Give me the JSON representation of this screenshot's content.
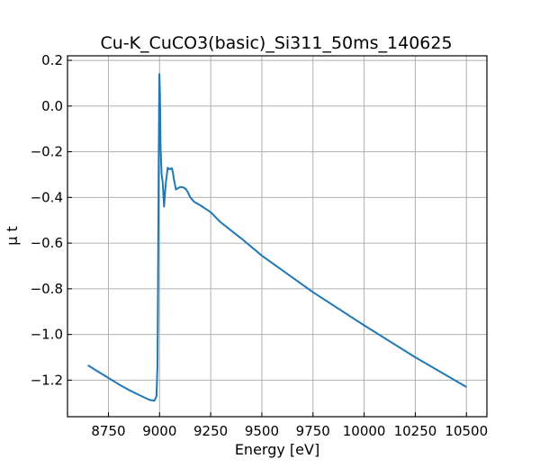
{
  "chart_data": {
    "type": "line",
    "title": "Cu-K_CuCO3(basic)_Si311_50ms_140625",
    "xlabel": "Energy [eV]",
    "ylabel": "μ t",
    "xlim": [
      8550,
      10600
    ],
    "ylim": [
      -1.36,
      0.22
    ],
    "xticks": [
      8750,
      9000,
      9250,
      9500,
      9750,
      10000,
      10250,
      10500
    ],
    "yticks": [
      0.2,
      0.0,
      -0.2,
      -0.4,
      -0.6,
      -0.8,
      -1.0,
      -1.2
    ],
    "xtick_labels": [
      "8750",
      "9000",
      "9250",
      "9500",
      "9750",
      "10000",
      "10250",
      "10500"
    ],
    "ytick_labels": [
      "0.2",
      "0.0",
      "−0.2",
      "−0.4",
      "−0.6",
      "−0.8",
      "−1.0",
      "−1.2"
    ],
    "grid": true,
    "line_color": "#1f77b4",
    "series": [
      {
        "x": [
          8650,
          8700,
          8750,
          8800,
          8850,
          8900,
          8950,
          8975,
          8985,
          8990,
          8993,
          8996,
          8999,
          9002,
          9005,
          9010,
          9015,
          9022,
          9030,
          9040,
          9050,
          9060,
          9065,
          9070,
          9080,
          9090,
          9100,
          9110,
          9120,
          9130,
          9140,
          9150,
          9170,
          9200,
          9250,
          9300,
          9400,
          9500,
          9750,
          10000,
          10250,
          10500
        ],
        "values": [
          -1.135,
          -1.163,
          -1.19,
          -1.218,
          -1.243,
          -1.265,
          -1.286,
          -1.29,
          -1.27,
          -1.13,
          -0.7,
          -0.2,
          0.14,
          0.05,
          -0.18,
          -0.3,
          -0.33,
          -0.44,
          -0.34,
          -0.27,
          -0.277,
          -0.272,
          -0.29,
          -0.32,
          -0.365,
          -0.36,
          -0.355,
          -0.355,
          -0.358,
          -0.365,
          -0.38,
          -0.4,
          -0.42,
          -0.435,
          -0.465,
          -0.51,
          -0.58,
          -0.655,
          -0.815,
          -0.96,
          -1.1,
          -1.23
        ]
      }
    ]
  }
}
